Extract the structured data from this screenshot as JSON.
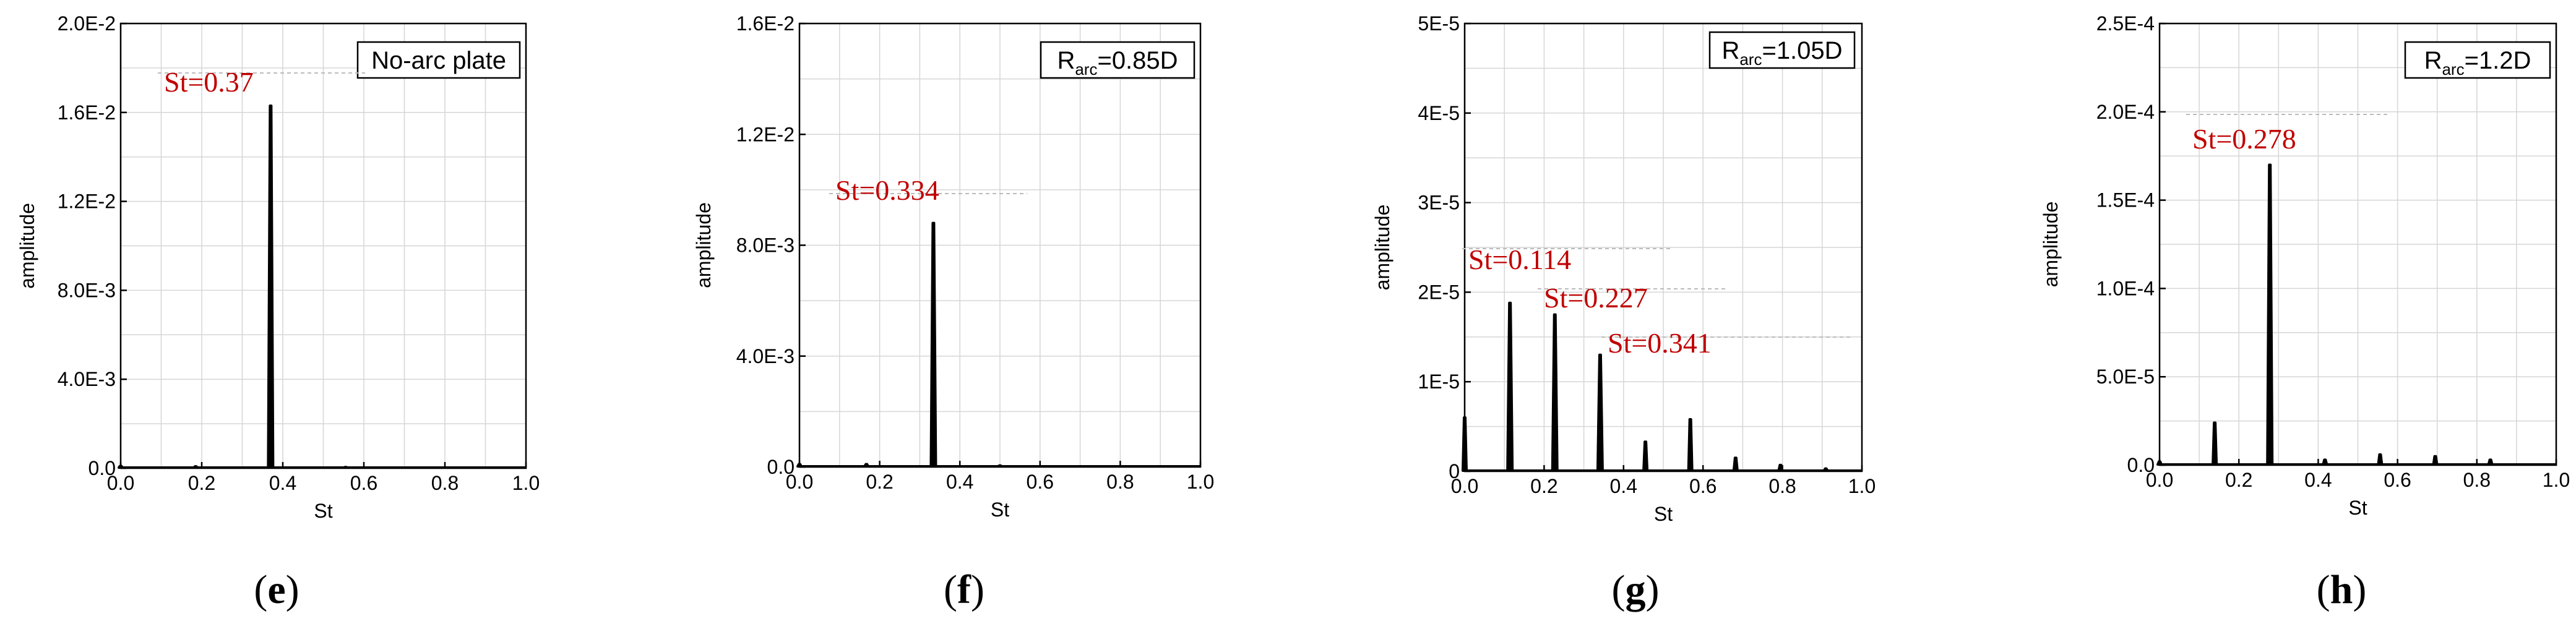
{
  "chart_data": [
    {
      "type": "line",
      "panel_label": "e",
      "legend_text": "No-arc plate",
      "legend_sub": "",
      "legend_tail": "",
      "xlabel": "St",
      "ylabel": "amplitude",
      "xlim": [
        0,
        1.0
      ],
      "ylim": [
        0,
        0.02
      ],
      "x_ticks": [
        "0.0",
        "0.2",
        "0.4",
        "0.6",
        "0.8",
        "1.0"
      ],
      "y_ticks": [
        "0.0",
        "4.0E-3",
        "8.0E-3",
        "1.2E-2",
        "1.6E-2",
        "2.0E-2"
      ],
      "grid": true,
      "legend_position": "top-right",
      "peaks": [
        {
          "x": 0.0,
          "y": 0.0001
        },
        {
          "x": 0.185,
          "y": 8e-05
        },
        {
          "x": 0.37,
          "y": 0.0163
        },
        {
          "x": 0.555,
          "y": 5e-05
        }
      ],
      "annotations": [
        {
          "text": "St=0.37",
          "x": 0.37,
          "y": 0.0163
        }
      ]
    },
    {
      "type": "line",
      "panel_label": "f",
      "legend_text": "R",
      "legend_sub": "arc",
      "legend_tail": "=0.85D",
      "xlabel": "St",
      "ylabel": "amplitude",
      "xlim": [
        0,
        1.0
      ],
      "ylim": [
        0,
        0.016
      ],
      "x_ticks": [
        "0.0",
        "0.2",
        "0.4",
        "0.6",
        "0.8",
        "1.0"
      ],
      "y_ticks": [
        "0.0",
        "4.0E-3",
        "8.0E-3",
        "1.2E-2",
        "1.6E-2"
      ],
      "grid": true,
      "legend_position": "top-right",
      "peaks": [
        {
          "x": 0.0,
          "y": 0.0001
        },
        {
          "x": 0.167,
          "y": 0.0001
        },
        {
          "x": 0.334,
          "y": 0.0088
        },
        {
          "x": 0.5,
          "y": 5e-05
        }
      ],
      "annotations": [
        {
          "text": "St=0.334",
          "x": 0.334,
          "y": 0.0088
        }
      ]
    },
    {
      "type": "line",
      "panel_label": "g",
      "legend_text": "R",
      "legend_sub": "arc",
      "legend_tail": "=1.05D",
      "xlabel": "St",
      "ylabel": "amplitude",
      "xlim": [
        0,
        1.0
      ],
      "ylim": [
        0,
        5e-05
      ],
      "x_ticks": [
        "0.0",
        "0.2",
        "0.4",
        "0.6",
        "0.8",
        "1.0"
      ],
      "y_ticks": [
        "0",
        "1E-5",
        "2E-5",
        "3E-5",
        "4E-5",
        "5E-5"
      ],
      "grid": true,
      "legend_position": "top-right",
      "peaks": [
        {
          "x": 0.0,
          "y": 6e-06
        },
        {
          "x": 0.114,
          "y": 1.88e-05
        },
        {
          "x": 0.227,
          "y": 1.75e-05
        },
        {
          "x": 0.341,
          "y": 1.3e-05
        },
        {
          "x": 0.455,
          "y": 3.3e-06
        },
        {
          "x": 0.568,
          "y": 5.8e-06
        },
        {
          "x": 0.682,
          "y": 1.5e-06
        },
        {
          "x": 0.795,
          "y": 7e-07
        },
        {
          "x": 0.909,
          "y": 3e-07
        }
      ],
      "annotations": [
        {
          "text": "St=0.114",
          "x": 0.114,
          "y": 1.88e-05
        },
        {
          "text": "St=0.227",
          "x": 0.227,
          "y": 1.75e-05
        },
        {
          "text": "St=0.341",
          "x": 0.341,
          "y": 1.3e-05
        }
      ]
    },
    {
      "type": "line",
      "panel_label": "h",
      "legend_text": "R",
      "legend_sub": "arc",
      "legend_tail": "=1.2D",
      "xlabel": "St",
      "ylabel": "amplitude",
      "xlim": [
        0,
        1.0
      ],
      "ylim": [
        0,
        0.00025
      ],
      "x_ticks": [
        "0.0",
        "0.2",
        "0.4",
        "0.6",
        "0.8",
        "1.0"
      ],
      "y_ticks": [
        "0.0",
        "5.0E-5",
        "1.0E-4",
        "1.5E-4",
        "2.0E-4",
        "2.5E-4"
      ],
      "grid": true,
      "legend_position": "top-right",
      "peaks": [
        {
          "x": 0.0,
          "y": 2e-06
        },
        {
          "x": 0.139,
          "y": 2.4e-05
        },
        {
          "x": 0.278,
          "y": 0.00017
        },
        {
          "x": 0.417,
          "y": 3e-06
        },
        {
          "x": 0.556,
          "y": 6e-06
        },
        {
          "x": 0.695,
          "y": 5e-06
        },
        {
          "x": 0.834,
          "y": 3e-06
        }
      ],
      "annotations": [
        {
          "text": "St=0.278",
          "x": 0.278,
          "y": 0.00017
        }
      ]
    }
  ]
}
